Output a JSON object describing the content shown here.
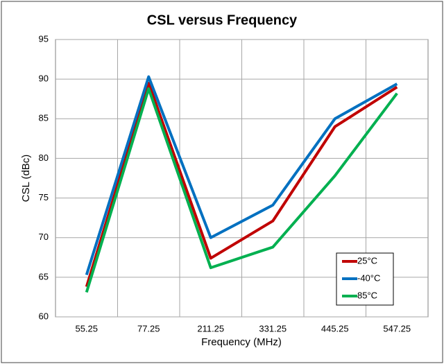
{
  "chart_data": {
    "type": "line",
    "title": "CSL versus Frequency",
    "x_label": "Frequency (MHz)",
    "y_label": "CSL (dBc)",
    "categories": [
      "55.25",
      "77.25",
      "211.25",
      "331.25",
      "445.25",
      "547.25"
    ],
    "series": [
      {
        "name": "25°C",
        "color": "#c00000",
        "values": [
          63.8,
          89.5,
          67.4,
          72.1,
          84.0,
          89.0
        ]
      },
      {
        "name": "-40°C",
        "color": "#0070c0",
        "values": [
          65.3,
          90.3,
          70.0,
          74.1,
          85.0,
          89.4
        ]
      },
      {
        "name": "85°C",
        "color": "#00b050",
        "values": [
          63.1,
          88.8,
          66.2,
          68.8,
          77.8,
          88.2
        ]
      }
    ],
    "ylim": [
      60,
      95
    ],
    "yticks": [
      60,
      65,
      70,
      75,
      80,
      85,
      90,
      95
    ],
    "grid": true,
    "legend": "lower right"
  }
}
